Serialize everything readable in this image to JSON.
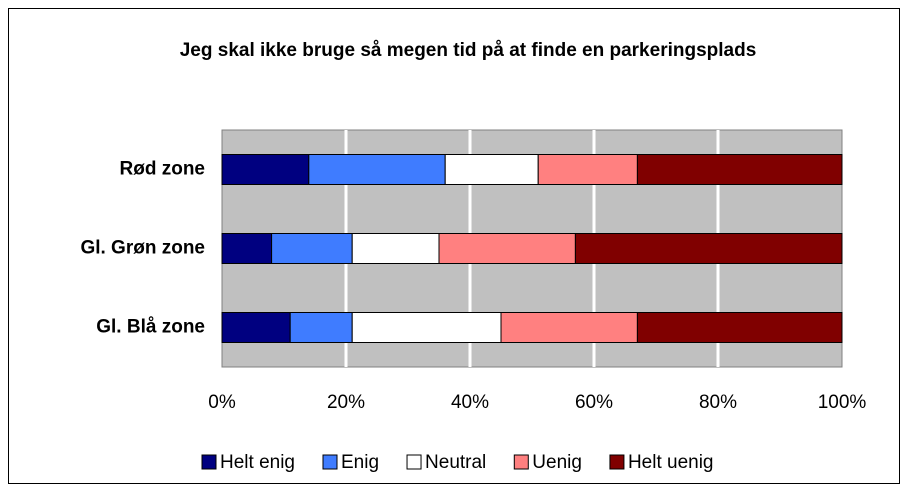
{
  "chart_data": {
    "type": "stacked_barh",
    "title": "Jeg skal ikke bruge så megen tid på at finde en parkeringsplads",
    "categories": [
      "Rød zone",
      "Gl. Grøn zone",
      "Gl. Blå zone"
    ],
    "series": [
      {
        "name": "Helt enig",
        "color": "#000080",
        "values": [
          14,
          8,
          11
        ]
      },
      {
        "name": "Enig",
        "color": "#3f7cff",
        "values": [
          22,
          13,
          10
        ]
      },
      {
        "name": "Neutral",
        "color": "#ffffff",
        "values": [
          15,
          14,
          24
        ]
      },
      {
        "name": "Uenig",
        "color": "#ff8080",
        "values": [
          16,
          22,
          22
        ]
      },
      {
        "name": "Helt uenig",
        "color": "#800000",
        "values": [
          33,
          43,
          33
        ]
      }
    ],
    "xlim": [
      0,
      100
    ],
    "xticks": [
      {
        "value": 0,
        "label": "0%"
      },
      {
        "value": 20,
        "label": "20%"
      },
      {
        "value": 40,
        "label": "40%"
      },
      {
        "value": 60,
        "label": "60%"
      },
      {
        "value": 80,
        "label": "80%"
      },
      {
        "value": 100,
        "label": "100%"
      }
    ],
    "grid": true,
    "legend": "bottom"
  }
}
